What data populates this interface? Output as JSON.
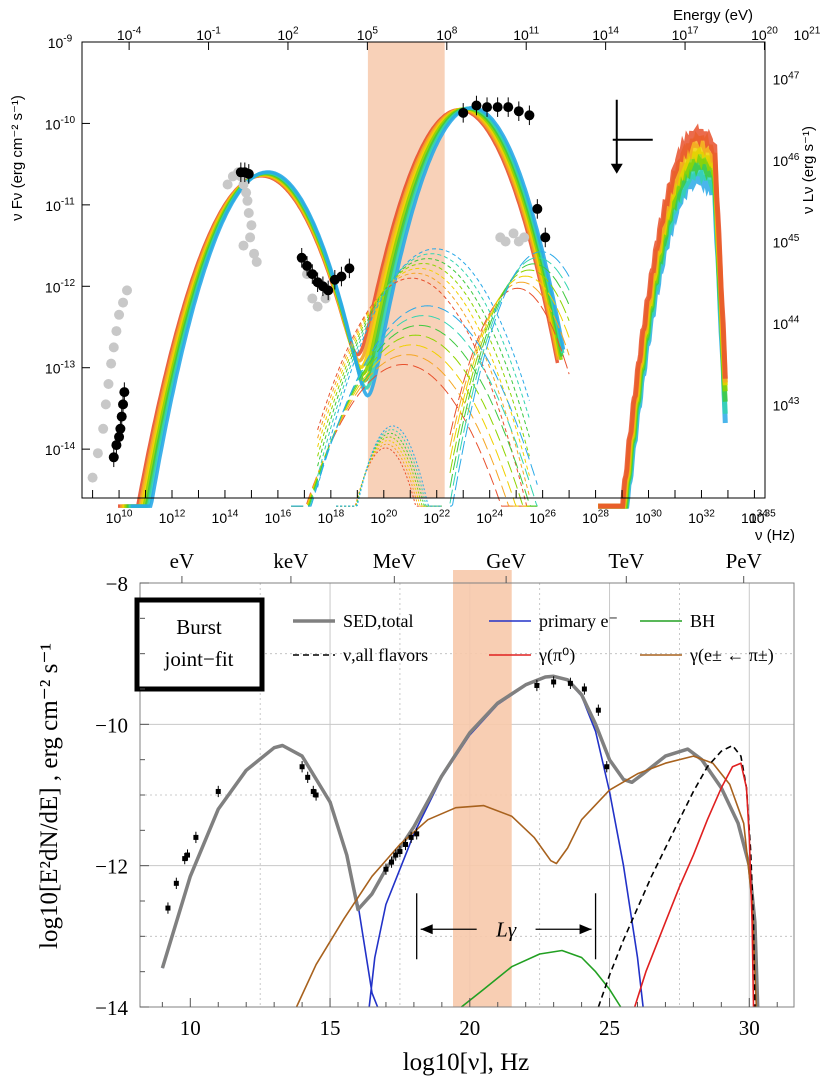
{
  "chart_data": [
    {
      "type": "line",
      "x_axis": {
        "label": "ν (Hz)",
        "scale": "log",
        "range_log10": [
          8.6,
          34.4
        ],
        "ticks": [
          {
            "v": 10,
            "label": "10"
          },
          {
            "v": 12,
            "label": "12"
          },
          {
            "v": 14,
            "label": "14"
          },
          {
            "v": 16,
            "label": "16"
          },
          {
            "v": 18,
            "label": "18"
          },
          {
            "v": 20,
            "label": "20"
          },
          {
            "v": 22,
            "label": "22"
          },
          {
            "v": 24,
            "label": "24"
          },
          {
            "v": 26,
            "label": "26"
          },
          {
            "v": 28,
            "label": "28"
          },
          {
            "v": 30,
            "label": "30"
          },
          {
            "v": 32,
            "label": "32"
          },
          {
            "v": 34,
            "label": "34"
          },
          {
            "v": 35,
            "label": "35"
          }
        ]
      },
      "top_axis": {
        "label": "Energy (eV)",
        "scale": "log",
        "ticks": [
          {
            "v": -4,
            "label": "-4"
          },
          {
            "v": -1,
            "label": "-1"
          },
          {
            "v": 2,
            "label": "2"
          },
          {
            "v": 5,
            "label": "5"
          },
          {
            "v": 8,
            "label": "8"
          },
          {
            "v": 11,
            "label": "11"
          },
          {
            "v": 14,
            "label": "14"
          },
          {
            "v": 17,
            "label": "17"
          },
          {
            "v": 20,
            "label": "20"
          },
          {
            "v": 21,
            "label": "21"
          }
        ]
      },
      "y_axis": {
        "label": "ν Fν (erg cm⁻² s⁻¹)",
        "scale": "log",
        "range_log10": [
          -14.6,
          -9.0
        ],
        "ticks": [
          {
            "v": -9,
            "label": "-9"
          },
          {
            "v": -10,
            "label": "-10"
          },
          {
            "v": -11,
            "label": "-11"
          },
          {
            "v": -12,
            "label": "-12"
          },
          {
            "v": -13,
            "label": "-13"
          },
          {
            "v": -14,
            "label": "-14"
          }
        ]
      },
      "right_axis": {
        "label": "ν Lν (erg s⁻¹)",
        "ticks": [
          {
            "v": 47,
            "label": "47",
            "y": -9.45
          },
          {
            "v": 46,
            "label": "46",
            "y": -10.45
          },
          {
            "v": 45,
            "label": "45",
            "y": -11.45
          },
          {
            "v": 44,
            "label": "44",
            "y": -12.45
          },
          {
            "v": 43,
            "label": "43",
            "y": -13.45
          }
        ]
      },
      "band": {
        "x_log10": [
          19.4,
          22.3
        ],
        "color": "#f7c9ab"
      },
      "model_colors": [
        "#e8512d",
        "#f5a623",
        "#f0d000",
        "#8fd400",
        "#3ec93e",
        "#33d4b0",
        "#2aa9e8"
      ],
      "points_black": [
        [
          9.8,
          -14.1
        ],
        [
          9.9,
          -13.95
        ],
        [
          10.0,
          -13.85
        ],
        [
          10.05,
          -13.75
        ],
        [
          10.1,
          -13.6
        ],
        [
          10.15,
          -13.45
        ],
        [
          10.2,
          -13.3
        ],
        [
          14.6,
          -10.6
        ],
        [
          14.75,
          -10.6
        ],
        [
          14.9,
          -10.62
        ],
        [
          16.9,
          -11.65
        ],
        [
          17.1,
          -11.75
        ],
        [
          17.3,
          -11.85
        ],
        [
          17.5,
          -11.95
        ],
        [
          17.7,
          -12.0
        ],
        [
          17.9,
          -12.05
        ],
        [
          18.15,
          -11.92
        ],
        [
          18.4,
          -11.88
        ],
        [
          18.7,
          -11.78
        ],
        [
          23.0,
          -9.87
        ],
        [
          23.5,
          -9.78
        ],
        [
          23.9,
          -9.8
        ],
        [
          24.3,
          -9.8
        ],
        [
          24.7,
          -9.8
        ],
        [
          25.1,
          -9.85
        ],
        [
          25.5,
          -9.9
        ],
        [
          25.8,
          -11.05
        ],
        [
          26.1,
          -11.4
        ]
      ],
      "points_grey": [
        [
          9.0,
          -14.35
        ],
        [
          9.2,
          -14.05
        ],
        [
          9.4,
          -13.75
        ],
        [
          9.5,
          -13.45
        ],
        [
          9.6,
          -13.2
        ],
        [
          9.7,
          -12.95
        ],
        [
          9.8,
          -12.75
        ],
        [
          9.9,
          -12.55
        ],
        [
          10.0,
          -12.35
        ],
        [
          10.15,
          -12.2
        ],
        [
          10.3,
          -12.05
        ],
        [
          14.1,
          -10.75
        ],
        [
          14.3,
          -10.65
        ],
        [
          14.5,
          -10.6
        ],
        [
          14.6,
          -10.65
        ],
        [
          14.7,
          -10.75
        ],
        [
          14.8,
          -10.85
        ],
        [
          14.85,
          -10.95
        ],
        [
          14.9,
          -11.1
        ],
        [
          15.0,
          -11.25
        ],
        [
          14.95,
          -11.4
        ],
        [
          14.7,
          -11.5
        ],
        [
          15.1,
          -11.6
        ],
        [
          15.2,
          -11.7
        ],
        [
          17.1,
          -11.85
        ],
        [
          17.3,
          -12.15
        ],
        [
          17.5,
          -12.25
        ],
        [
          17.8,
          -12.15
        ],
        [
          24.4,
          -11.4
        ],
        [
          24.6,
          -11.45
        ],
        [
          24.9,
          -11.35
        ],
        [
          25.1,
          -11.45
        ],
        [
          25.3,
          -11.4
        ]
      ],
      "upper_limit": {
        "x": 28.8,
        "y": -10.2
      }
    },
    {
      "type": "line",
      "title": "Burst joint−fit",
      "x_axis": {
        "label": "log10[ν], Hz",
        "range": [
          8.2,
          31.6
        ],
        "ticks": [
          10,
          15,
          20,
          25,
          30
        ]
      },
      "top_axis_labels": [
        {
          "x": 9.7,
          "label": "eV"
        },
        {
          "x": 13.6,
          "label": "keV"
        },
        {
          "x": 17.3,
          "label": "MeV"
        },
        {
          "x": 21.3,
          "label": "GeV"
        },
        {
          "x": 25.6,
          "label": "TeV"
        },
        {
          "x": 29.8,
          "label": "PeV"
        }
      ],
      "y_axis": {
        "label": "log10[E²dN/dE] , erg cm⁻² s⁻¹",
        "range": [
          -14,
          -8
        ],
        "ticks": [
          -8,
          -10,
          -12,
          -14
        ]
      },
      "band": {
        "x": [
          19.4,
          21.5
        ],
        "color": "#f7c9ab"
      },
      "legend": [
        {
          "key": "total",
          "label": "SED,total",
          "color": "#808080",
          "style": "solid"
        },
        {
          "key": "primary",
          "label": "primary e⁻",
          "color": "#2232c8",
          "style": "solid"
        },
        {
          "key": "bh",
          "label": "BH",
          "color": "#22a022",
          "style": "solid"
        },
        {
          "key": "nu",
          "label": "ν,all flavors",
          "color": "#000000",
          "style": "dashed"
        },
        {
          "key": "pi0",
          "label": "γ(π⁰)",
          "color": "#e02020",
          "style": "solid"
        },
        {
          "key": "epm",
          "label": "γ(e± ← π±)",
          "color": "#a8621e",
          "style": "solid"
        }
      ],
      "series": [
        {
          "key": "primary",
          "points": [
            [
              9.0,
              -13.45
            ],
            [
              10.0,
              -12.15
            ],
            [
              11.0,
              -11.2
            ],
            [
              12.0,
              -10.65
            ],
            [
              13.0,
              -10.33
            ],
            [
              13.3,
              -10.3
            ],
            [
              14.0,
              -10.45
            ],
            [
              15.0,
              -11.1
            ],
            [
              15.6,
              -11.85
            ],
            [
              16.0,
              -12.55
            ],
            [
              16.2,
              -13.05
            ],
            [
              16.5,
              -13.8
            ],
            [
              16.7,
              -14.0
            ]
          ]
        },
        {
          "key": "primary",
          "points": [
            [
              16.4,
              -14.0
            ],
            [
              16.6,
              -13.3
            ],
            [
              17.0,
              -12.55
            ],
            [
              18.0,
              -11.55
            ],
            [
              19.0,
              -10.75
            ],
            [
              20.0,
              -10.15
            ],
            [
              21.0,
              -9.72
            ],
            [
              22.0,
              -9.45
            ],
            [
              22.7,
              -9.34
            ],
            [
              23.0,
              -9.33
            ],
            [
              23.5,
              -9.38
            ],
            [
              24.0,
              -9.6
            ],
            [
              24.5,
              -10.1
            ],
            [
              25.0,
              -10.95
            ],
            [
              25.5,
              -12.0
            ],
            [
              26.0,
              -13.3
            ],
            [
              26.2,
              -14.0
            ]
          ]
        },
        {
          "key": "total",
          "points": [
            [
              9.0,
              -13.45
            ],
            [
              10.0,
              -12.15
            ],
            [
              11.0,
              -11.2
            ],
            [
              12.0,
              -10.65
            ],
            [
              13.0,
              -10.33
            ],
            [
              13.3,
              -10.3
            ],
            [
              14.0,
              -10.45
            ],
            [
              15.0,
              -11.1
            ],
            [
              15.6,
              -11.85
            ],
            [
              16.0,
              -12.62
            ],
            [
              16.5,
              -12.4
            ],
            [
              17.0,
              -12.05
            ],
            [
              18.0,
              -11.45
            ],
            [
              19.0,
              -10.73
            ],
            [
              20.0,
              -10.12
            ],
            [
              21.0,
              -9.7
            ],
            [
              22.0,
              -9.44
            ],
            [
              22.7,
              -9.33
            ],
            [
              23.0,
              -9.32
            ],
            [
              23.5,
              -9.37
            ],
            [
              24.0,
              -9.58
            ],
            [
              24.5,
              -10.0
            ],
            [
              25.0,
              -10.5
            ],
            [
              25.5,
              -10.78
            ],
            [
              25.8,
              -10.82
            ],
            [
              26.2,
              -10.7
            ],
            [
              27.0,
              -10.45
            ],
            [
              27.8,
              -10.35
            ],
            [
              28.3,
              -10.5
            ],
            [
              29.0,
              -10.9
            ],
            [
              29.6,
              -11.4
            ],
            [
              30.0,
              -12.0
            ],
            [
              30.2,
              -12.8
            ],
            [
              30.3,
              -14.0
            ]
          ]
        },
        {
          "key": "epm",
          "points": [
            [
              13.8,
              -14.0
            ],
            [
              14.5,
              -13.4
            ],
            [
              15.5,
              -12.75
            ],
            [
              16.5,
              -12.15
            ],
            [
              17.5,
              -11.7
            ],
            [
              18.5,
              -11.35
            ],
            [
              19.5,
              -11.18
            ],
            [
              20.5,
              -11.15
            ],
            [
              21.5,
              -11.3
            ],
            [
              22.3,
              -11.6
            ],
            [
              22.9,
              -11.93
            ],
            [
              23.1,
              -11.97
            ],
            [
              23.5,
              -11.75
            ],
            [
              24.0,
              -11.35
            ],
            [
              25.0,
              -10.93
            ],
            [
              26.0,
              -10.7
            ],
            [
              27.0,
              -10.55
            ],
            [
              28.0,
              -10.45
            ],
            [
              28.7,
              -10.55
            ],
            [
              29.3,
              -10.85
            ],
            [
              29.8,
              -11.4
            ],
            [
              30.1,
              -12.5
            ],
            [
              30.25,
              -14.0
            ]
          ]
        },
        {
          "key": "bh",
          "points": [
            [
              19.7,
              -14.0
            ],
            [
              20.5,
              -13.75
            ],
            [
              21.5,
              -13.43
            ],
            [
              22.5,
              -13.25
            ],
            [
              23.3,
              -13.2
            ],
            [
              24.0,
              -13.3
            ],
            [
              24.5,
              -13.5
            ],
            [
              25.0,
              -13.75
            ],
            [
              25.4,
              -14.0
            ]
          ]
        },
        {
          "key": "nu",
          "points": [
            [
              24.6,
              -14.0
            ],
            [
              25.0,
              -13.55
            ],
            [
              25.5,
              -13.05
            ],
            [
              26.0,
              -12.6
            ],
            [
              26.5,
              -12.15
            ],
            [
              27.0,
              -11.75
            ],
            [
              27.5,
              -11.35
            ],
            [
              28.0,
              -10.95
            ],
            [
              28.5,
              -10.6
            ],
            [
              29.0,
              -10.38
            ],
            [
              29.4,
              -10.3
            ],
            [
              29.7,
              -10.45
            ],
            [
              29.9,
              -10.9
            ],
            [
              30.05,
              -11.8
            ],
            [
              30.15,
              -12.8
            ],
            [
              30.2,
              -14.0
            ]
          ]
        },
        {
          "key": "pi0",
          "points": [
            [
              25.9,
              -14.0
            ],
            [
              26.3,
              -13.5
            ],
            [
              27.0,
              -12.8
            ],
            [
              27.5,
              -12.3
            ],
            [
              28.0,
              -11.85
            ],
            [
              28.5,
              -11.35
            ],
            [
              29.0,
              -10.9
            ],
            [
              29.4,
              -10.6
            ],
            [
              29.7,
              -10.55
            ],
            [
              29.9,
              -10.9
            ],
            [
              30.0,
              -11.6
            ],
            [
              30.1,
              -12.8
            ],
            [
              30.15,
              -14.0
            ]
          ]
        }
      ],
      "points": [
        [
          9.2,
          -12.6
        ],
        [
          9.5,
          -12.25
        ],
        [
          9.8,
          -11.9
        ],
        [
          9.9,
          -11.85
        ],
        [
          10.2,
          -11.6
        ],
        [
          11.0,
          -10.95
        ],
        [
          14.0,
          -10.6
        ],
        [
          14.2,
          -10.75
        ],
        [
          14.4,
          -10.95
        ],
        [
          14.5,
          -11.0
        ],
        [
          17.0,
          -12.05
        ],
        [
          17.2,
          -11.95
        ],
        [
          17.35,
          -11.85
        ],
        [
          17.5,
          -11.8
        ],
        [
          17.7,
          -11.7
        ],
        [
          17.9,
          -11.6
        ],
        [
          18.1,
          -11.55
        ],
        [
          22.4,
          -9.45
        ],
        [
          23.0,
          -9.4
        ],
        [
          23.6,
          -9.42
        ],
        [
          24.1,
          -9.5
        ],
        [
          24.6,
          -9.8
        ],
        [
          24.9,
          -10.6
        ]
      ],
      "annotation": {
        "label": "Lγ",
        "x_from": 18.1,
        "x_to": 24.5,
        "y": -12.9
      }
    }
  ]
}
